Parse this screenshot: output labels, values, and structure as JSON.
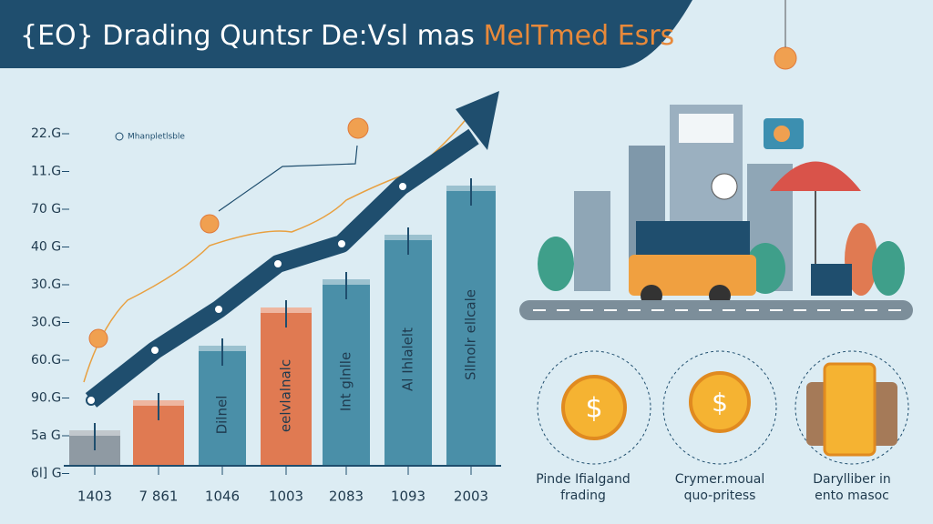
{
  "header": {
    "title": "{EO} Drading Quntsr De:Vsl mas",
    "highlight": "MelTmed Esrs"
  },
  "legend": "Mhanpletlsble",
  "y_labels": [
    "22.G",
    "11.G",
    "70 G",
    "40 G",
    "30.G",
    "30.G",
    "60.G",
    "90.G",
    "5a G",
    "6l] G"
  ],
  "x_labels": [
    "1403",
    "7 861",
    "1046",
    "1003",
    "2083",
    "1093",
    "2003"
  ],
  "bar_labels": [
    "Dilnel",
    "eelvlalnalc",
    "Int glnlle",
    "Al Ihlalelt",
    "Sllnolr ellcale"
  ],
  "captions": [
    [
      "Pinde Ifialgand",
      "frading"
    ],
    [
      "Crymer.moual",
      "quo-pritess"
    ],
    [
      "Darylliber in",
      "ento masoc"
    ]
  ]
}
